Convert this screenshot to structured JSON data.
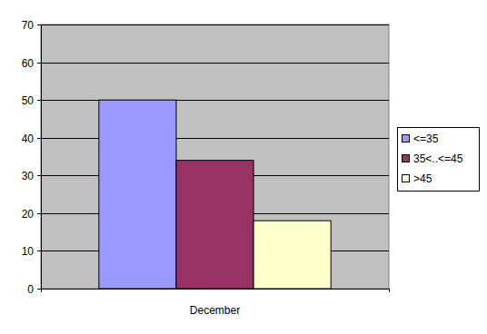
{
  "chart_data": {
    "type": "bar",
    "categories": [
      "December"
    ],
    "series": [
      {
        "name": "<=35",
        "color": "#9999ff",
        "values": [
          50
        ]
      },
      {
        "name": "35<..<=45",
        "color": "#993366",
        "values": [
          34
        ]
      },
      {
        "name": ">45",
        "color": "#ffffcc",
        "values": [
          18
        ]
      }
    ],
    "ylim": [
      0,
      70
    ],
    "yticks": [
      0,
      10,
      20,
      30,
      40,
      50,
      60,
      70
    ],
    "grid": true,
    "legend": "right"
  }
}
